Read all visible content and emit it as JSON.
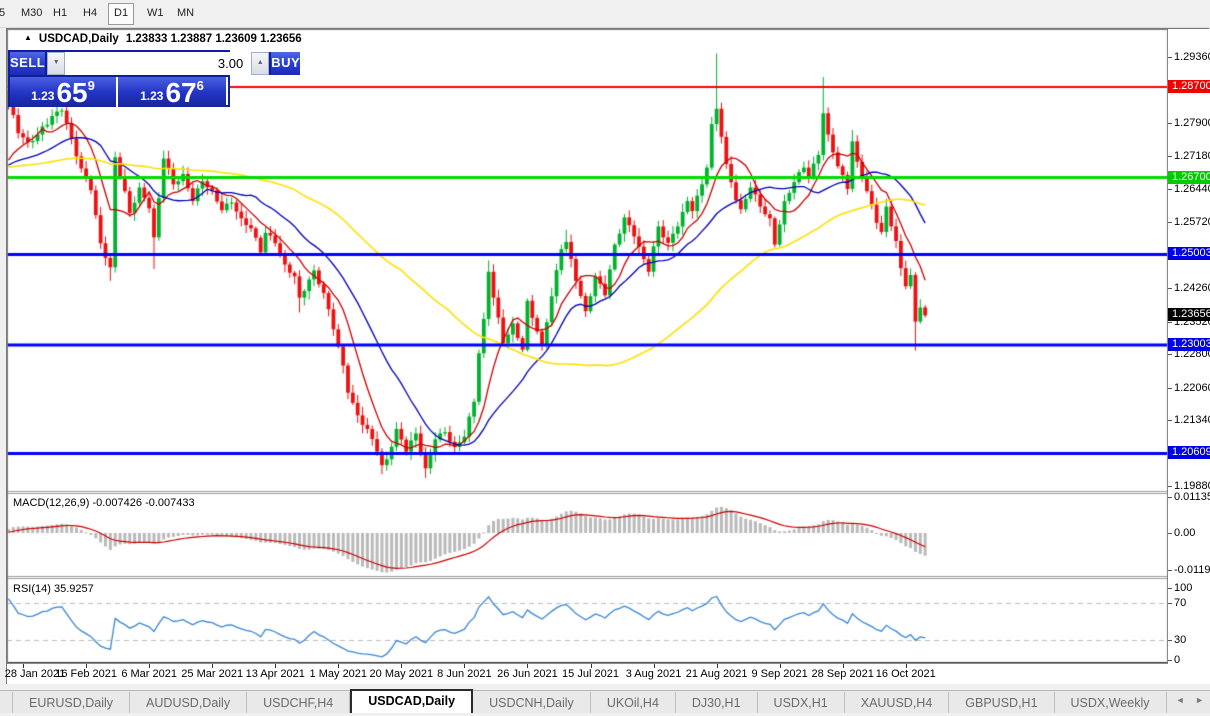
{
  "toolbar": {
    "timeframes": [
      {
        "label": "5",
        "active": false
      },
      {
        "label": "M30",
        "active": false
      },
      {
        "label": "H1",
        "active": false
      },
      {
        "label": "H4",
        "active": false
      },
      {
        "label": "D1",
        "active": true
      },
      {
        "label": "W1",
        "active": false
      },
      {
        "label": "MN",
        "active": false
      }
    ]
  },
  "chart_header": {
    "collapse_icon": "▲",
    "symbol_title": "USDCAD,Daily",
    "ohlc_text": "1.23833 1.23887 1.23609 1.23656"
  },
  "trade_panel": {
    "sell_label": "SELL",
    "buy_label": "BUY",
    "volume_value": "3.00",
    "spinner_down_icon": "▼",
    "spinner_up_icon": "▲",
    "bid": {
      "prefix": "1.23",
      "big": "65",
      "sup": "9"
    },
    "ask": {
      "prefix": "1.23",
      "big": "67",
      "sup": "6"
    }
  },
  "price_axis": {
    "labels": [
      {
        "text": "1.29360",
        "price": 1.2936
      },
      {
        "text": "1.28640",
        "price": 1.2864
      },
      {
        "text": "1.27900",
        "price": 1.279
      },
      {
        "text": "1.27180",
        "price": 1.2718
      },
      {
        "text": "1.26440",
        "price": 1.2644
      },
      {
        "text": "1.25720",
        "price": 1.2572
      },
      {
        "text": "1.24980",
        "price": 1.2498
      },
      {
        "text": "1.24260",
        "price": 1.2426
      },
      {
        "text": "1.23520",
        "price": 1.2352
      },
      {
        "text": "1.22800",
        "price": 1.228
      },
      {
        "text": "1.22060",
        "price": 1.2206
      },
      {
        "text": "1.21340",
        "price": 1.2134
      },
      {
        "text": "1.20600",
        "price": 1.206
      },
      {
        "text": "1.19880",
        "price": 1.1988
      }
    ],
    "badges": [
      {
        "text": "1.28700",
        "price": 1.287,
        "bg": "#f30000",
        "fg": "#ffffff"
      },
      {
        "text": "1.26700",
        "price": 1.267,
        "bg": "#00cd00",
        "fg": "#ffffff"
      },
      {
        "text": "1.25003",
        "price": 1.25003,
        "bg": "#0000e6",
        "fg": "#ffffff"
      },
      {
        "text": "1.23003",
        "price": 1.23003,
        "bg": "#0000e6",
        "fg": "#ffffff"
      },
      {
        "text": "1.20609",
        "price": 1.20609,
        "bg": "#0000e6",
        "fg": "#ffffff"
      },
      {
        "text": "1.23656",
        "price": 1.23656,
        "bg": "#000000",
        "fg": "#ffffff"
      }
    ]
  },
  "indicators": {
    "macd": {
      "label": "MACD(12,26,9) -0.007426 -0.007433",
      "axis": [
        {
          "text": "0.01135",
          "value": 0.01135
        },
        {
          "text": "0.00",
          "value": 0
        },
        {
          "text": "-0.011904",
          "value": -0.011904
        }
      ]
    },
    "rsi": {
      "label": "RSI(14) 35.9257",
      "axis": [
        {
          "text": "100",
          "value": 100
        },
        {
          "text": "70",
          "value": 70
        },
        {
          "text": "30",
          "value": 30
        },
        {
          "text": "0",
          "value": 0
        }
      ]
    }
  },
  "tabs": {
    "items": [
      {
        "label": "EURUSD,Daily",
        "active": false
      },
      {
        "label": "AUDUSD,Daily",
        "active": false
      },
      {
        "label": "USDCHF,H4",
        "active": false
      },
      {
        "label": "USDCAD,Daily",
        "active": true
      },
      {
        "label": "USDCNH,Daily",
        "active": false
      },
      {
        "label": "UKOil,H4",
        "active": false
      },
      {
        "label": "DJ30,H1",
        "active": false
      },
      {
        "label": "USDX,H1",
        "active": false
      },
      {
        "label": "XAUUSD,H4",
        "active": false
      },
      {
        "label": "GBPUSD,H1",
        "active": false
      },
      {
        "label": "USDX,Weekly",
        "active": false
      }
    ],
    "scroll_left_icon": "◄",
    "scroll_right_icon": "►"
  },
  "chart_data": {
    "type": "candlestick",
    "symbol": "USDCAD",
    "timeframe": "Daily",
    "n_candles": 190,
    "first_open": 1.2858,
    "prehistory_close": 1.269,
    "visible_price_range": [
      1.198,
      1.2996
    ],
    "last_ohlc": {
      "open": 1.23833,
      "high": 1.23887,
      "low": 1.23609,
      "close": 1.23656
    },
    "current_price": 1.23656,
    "x_ticks": [
      "28 Jan 2021",
      "16 Feb 2021",
      "6 Mar 2021",
      "25 Mar 2021",
      "13 Apr 2021",
      "1 May 2021",
      "20 May 2021",
      "8 Jun 2021",
      "26 Jun 2021",
      "15 Jul 2021",
      "3 Aug 2021",
      "21 Aug 2021",
      "9 Sep 2021",
      "28 Sep 2021",
      "16 Oct 2021"
    ],
    "close_anchors": [
      [
        0,
        1.2838
      ],
      [
        2,
        1.2768
      ],
      [
        4,
        1.2748
      ],
      [
        6,
        1.2765
      ],
      [
        9,
        1.2806
      ],
      [
        11,
        1.2818
      ],
      [
        13,
        1.2756
      ],
      [
        15,
        1.269
      ],
      [
        17,
        1.2642
      ],
      [
        19,
        1.2525
      ],
      [
        21,
        1.2472
      ],
      [
        22,
        1.2715
      ],
      [
        24,
        1.264
      ],
      [
        25,
        1.2592
      ],
      [
        27,
        1.2648
      ],
      [
        29,
        1.2602
      ],
      [
        30,
        1.2538
      ],
      [
        32,
        1.2712
      ],
      [
        34,
        1.2655
      ],
      [
        36,
        1.2678
      ],
      [
        38,
        1.2618
      ],
      [
        40,
        1.2662
      ],
      [
        42,
        1.2642
      ],
      [
        44,
        1.2598
      ],
      [
        46,
        1.2615
      ],
      [
        48,
        1.258
      ],
      [
        50,
        1.2558
      ],
      [
        52,
        1.2505
      ],
      [
        53,
        1.2548
      ],
      [
        55,
        1.2525
      ],
      [
        57,
        1.2478
      ],
      [
        59,
        1.2452
      ],
      [
        60,
        1.2405
      ],
      [
        62,
        1.2445
      ],
      [
        63,
        1.2465
      ],
      [
        65,
        1.2415
      ],
      [
        67,
        1.2335
      ],
      [
        69,
        1.2255
      ],
      [
        70,
        1.2195
      ],
      [
        72,
        1.2145
      ],
      [
        74,
        1.2115
      ],
      [
        76,
        1.2065
      ],
      [
        77,
        1.2035
      ],
      [
        78,
        1.2048
      ],
      [
        80,
        1.2115
      ],
      [
        82,
        1.2065
      ],
      [
        84,
        1.2105
      ],
      [
        86,
        1.2028
      ],
      [
        88,
        1.2092
      ],
      [
        90,
        1.2108
      ],
      [
        92,
        1.2075
      ],
      [
        94,
        1.2098
      ],
      [
        96,
        1.2175
      ],
      [
        97,
        1.2282
      ],
      [
        98,
        1.2358
      ],
      [
        99,
        1.2462
      ],
      [
        100,
        1.2405
      ],
      [
        102,
        1.2305
      ],
      [
        104,
        1.2348
      ],
      [
        106,
        1.229
      ],
      [
        107,
        1.2398
      ],
      [
        109,
        1.233
      ],
      [
        110,
        1.2302
      ],
      [
        112,
        1.2408
      ],
      [
        114,
        1.2512
      ],
      [
        115,
        1.2528
      ],
      [
        117,
        1.2442
      ],
      [
        119,
        1.2375
      ],
      [
        121,
        1.2452
      ],
      [
        123,
        1.241
      ],
      [
        125,
        1.2522
      ],
      [
        127,
        1.2582
      ],
      [
        129,
        1.254
      ],
      [
        131,
        1.249
      ],
      [
        132,
        1.2462
      ],
      [
        133,
        1.2518
      ],
      [
        134,
        1.2562
      ],
      [
        136,
        1.2526
      ],
      [
        138,
        1.2562
      ],
      [
        140,
        1.2618
      ],
      [
        141,
        1.2596
      ],
      [
        143,
        1.2655
      ],
      [
        144,
        1.2692
      ],
      [
        145,
        1.2788
      ],
      [
        146,
        1.2822
      ],
      [
        147,
        1.276
      ],
      [
        148,
        1.27
      ],
      [
        150,
        1.262
      ],
      [
        151,
        1.26
      ],
      [
        153,
        1.2648
      ],
      [
        155,
        1.2606
      ],
      [
        157,
        1.258
      ],
      [
        158,
        1.2522
      ],
      [
        160,
        1.2618
      ],
      [
        162,
        1.266
      ],
      [
        164,
        1.2692
      ],
      [
        165,
        1.267
      ],
      [
        167,
        1.272
      ],
      [
        168,
        1.2812
      ],
      [
        169,
        1.2765
      ],
      [
        171,
        1.2695
      ],
      [
        173,
        1.2645
      ],
      [
        174,
        1.275
      ],
      [
        175,
        1.2705
      ],
      [
        177,
        1.264
      ],
      [
        179,
        1.257
      ],
      [
        180,
        1.255
      ],
      [
        181,
        1.2606
      ],
      [
        183,
        1.253
      ],
      [
        184,
        1.247
      ],
      [
        185,
        1.243
      ],
      [
        186,
        1.2455
      ],
      [
        187,
        1.2352
      ],
      [
        188,
        1.2383
      ],
      [
        189,
        1.23656
      ]
    ],
    "wick_overrides": {
      "21": {
        "l": 1.2442
      },
      "30": {
        "l": 1.2468
      },
      "60": {
        "l": 1.2372
      },
      "77": {
        "l": 1.2015
      },
      "86": {
        "l": 1.2007
      },
      "99": {
        "h": 1.2487
      },
      "115": {
        "h": 1.2555
      },
      "146": {
        "h": 1.2944
      },
      "168": {
        "h": 1.2892
      },
      "174": {
        "h": 1.2775
      },
      "187": {
        "l": 1.2288
      },
      "189": {
        "o": 1.23833,
        "h": 1.23887,
        "l": 1.23609,
        "c": 1.23656
      }
    },
    "hlines": [
      {
        "price": 1.287,
        "color": "#ff0000",
        "width": 2
      },
      {
        "price": 1.267,
        "color": "#00dc00",
        "width": 3
      },
      {
        "price": 1.25003,
        "color": "#0000ff",
        "width": 3
      },
      {
        "price": 1.23003,
        "color": "#0000ff",
        "width": 3
      },
      {
        "price": 1.20609,
        "color": "#0000ff",
        "width": 3
      }
    ],
    "moving_averages": [
      {
        "period": 8,
        "color": "#cc0000"
      },
      {
        "period": 20,
        "color": "#0000b4"
      },
      {
        "period": 60,
        "color": "#ffe000"
      }
    ],
    "bull_color": "#00b22d",
    "bear_color": "#ee1111",
    "macd": {
      "fast": 12,
      "slow": 26,
      "signal": 9,
      "current": -0.007426,
      "current_signal": -0.007433,
      "axis_max": 0.01135,
      "axis_min": -0.011904,
      "histogram_color": "#bababa",
      "signal_color": "#cc0000"
    },
    "rsi": {
      "period": 14,
      "current": 35.9257,
      "levels": [
        70,
        30
      ],
      "line_color": "#3a87d4"
    }
  }
}
